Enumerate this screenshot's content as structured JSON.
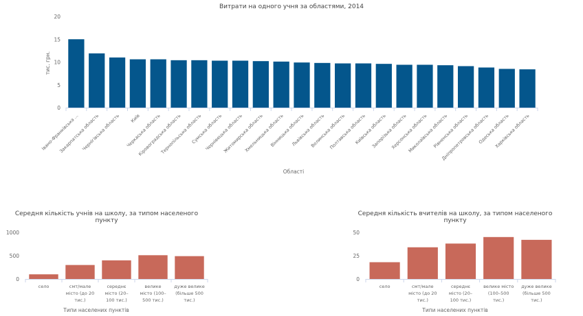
{
  "chart_data": [
    {
      "id": "main",
      "type": "bar",
      "title": "Витрати на одного учня за областями, 2014",
      "xlabel": "Області",
      "ylabel": "тис. грн.",
      "ylim": [
        0,
        20
      ],
      "yticks": [
        0,
        5,
        10,
        15,
        20
      ],
      "grid": false,
      "color": "#04568c",
      "categories": [
        "Івано-Франківська ...",
        "Закарпатська область",
        "Чернігівська область",
        "Київ",
        "Черкаська область",
        "Кіровоградська область",
        "Тернопільська область",
        "Сумська область",
        "Чернівецька область",
        "Житомирська область",
        "Хмельницька область",
        "Вінницька область",
        "Львівська область",
        "Волинська область",
        "Полтавська область",
        "Київська область",
        "Запорізька область",
        "Херсонська область",
        "Миколаївська область",
        "Рівненська область",
        "Дніпропетровська область",
        "Одеська область",
        "Харківська область"
      ],
      "values": [
        15.0,
        11.9,
        11.0,
        10.6,
        10.6,
        10.4,
        10.4,
        10.3,
        10.3,
        10.2,
        10.1,
        9.9,
        9.8,
        9.7,
        9.7,
        9.6,
        9.4,
        9.4,
        9.3,
        9.1,
        8.8,
        8.5,
        8.4
      ]
    },
    {
      "id": "students",
      "type": "bar",
      "title": [
        "Середня кількість учнів на школу, за типом населеного",
        "пункту"
      ],
      "xlabel": "Типи населених пунктів",
      "ylabel": "",
      "ylim": [
        0,
        1000
      ],
      "yticks": [
        0,
        500,
        1000
      ],
      "grid": false,
      "color": "#c8695a",
      "categories": [
        [
          "село"
        ],
        [
          "смт/мале",
          "місто (до 20",
          "тис.)"
        ],
        [
          "середнє",
          "місто (20–",
          "100 тис.)"
        ],
        [
          "велике",
          "місто (100–",
          "500 тис.)"
        ],
        [
          "дуже велике",
          "(більше 500",
          "тис.)"
        ]
      ],
      "values": [
        100,
        300,
        400,
        510,
        490
      ]
    },
    {
      "id": "teachers",
      "type": "bar",
      "title": [
        "Середня кількість вчителів на школу, за типом населеного",
        "пункту"
      ],
      "xlabel": "Типи населених пунктів",
      "ylabel": "",
      "ylim": [
        0,
        50
      ],
      "yticks": [
        0,
        25,
        50
      ],
      "grid": false,
      "color": "#c8695a",
      "categories": [
        [
          "село"
        ],
        [
          "смт/мале",
          "місто (до 20",
          "тис.)"
        ],
        [
          "середнє",
          "місто (20–",
          "100 тис.)"
        ],
        [
          "велике місто",
          "(100–500",
          "тис.)"
        ],
        [
          "дуже велике",
          "(більше 500",
          "тис.)"
        ]
      ],
      "values": [
        18,
        34,
        38,
        45,
        42
      ]
    }
  ]
}
